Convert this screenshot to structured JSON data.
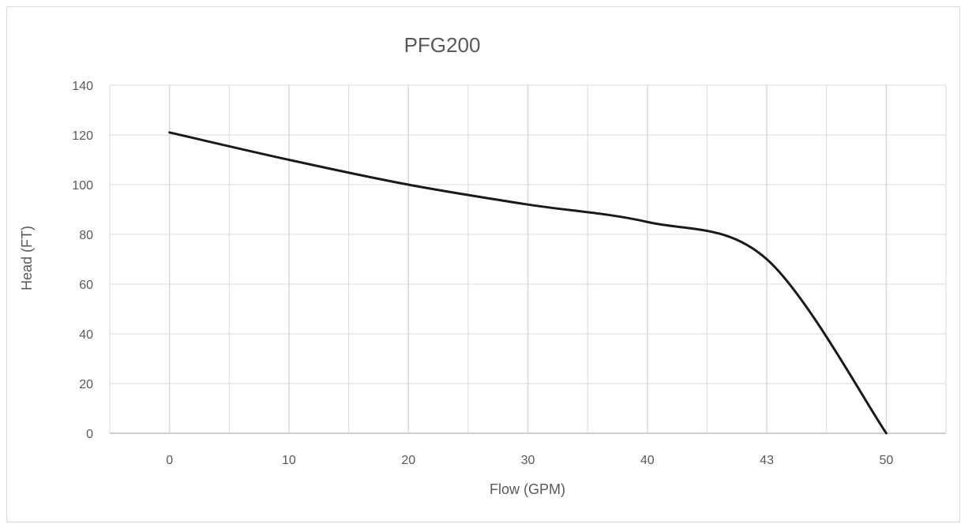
{
  "chart_data": {
    "type": "line",
    "title": "PFG200",
    "xlabel": "Flow (GPM)",
    "ylabel": "Head (FT)",
    "categories": [
      "0",
      "10",
      "20",
      "30",
      "40",
      "43",
      "50"
    ],
    "ylim": [
      0,
      140
    ],
    "yticks": [
      0,
      20,
      40,
      60,
      80,
      100,
      120,
      140
    ],
    "grid": true,
    "legend": "none",
    "series": [
      {
        "color": "#1a1a1a",
        "values": [
          121,
          110,
          100,
          92,
          85,
          70,
          0
        ]
      }
    ]
  }
}
